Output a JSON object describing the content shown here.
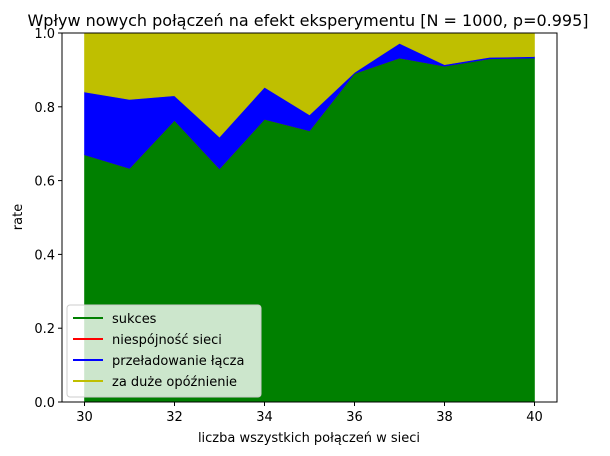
{
  "chart_data": {
    "type": "area",
    "title": "Wpływ nowych połączeń na efekt eksperymentu [N = 1000, p=0.995]",
    "xlabel": "liczba wszystkich połączeń w sieci",
    "ylabel": "rate",
    "xlim": [
      29.5,
      40.5
    ],
    "ylim": [
      0,
      1
    ],
    "x": [
      30,
      31,
      32,
      33,
      34,
      35,
      36,
      37,
      38,
      39,
      40
    ],
    "x_ticks": [
      30,
      32,
      34,
      36,
      38,
      40
    ],
    "y_ticks": [
      0.0,
      0.2,
      0.4,
      0.6,
      0.8,
      1.0
    ],
    "x_tick_labels": [
      "30",
      "32",
      "34",
      "36",
      "38",
      "40"
    ],
    "y_tick_labels": [
      "0.0",
      "0.2",
      "0.4",
      "0.6",
      "0.8",
      "1.0"
    ],
    "stacked": true,
    "legend_position": "lower-left",
    "grid": false,
    "series": [
      {
        "name": "sukces",
        "color": "#008000",
        "values": [
          0.67,
          0.633,
          0.763,
          0.632,
          0.766,
          0.735,
          0.89,
          0.932,
          0.91,
          0.93,
          0.932
        ]
      },
      {
        "name": "niespójność sieci",
        "color": "#ff0000",
        "values": [
          0,
          0,
          0,
          0,
          0,
          0,
          0,
          0,
          0,
          0,
          0
        ]
      },
      {
        "name": "przeładowanie łącza",
        "color": "#0000ff",
        "values": [
          0.17,
          0.187,
          0.067,
          0.086,
          0.087,
          0.043,
          0.003,
          0.04,
          0.004,
          0.004,
          0.004
        ]
      },
      {
        "name": "za duże opóźnienie",
        "color": "#bfbf00",
        "values": [
          0.16,
          0.18,
          0.17,
          0.282,
          0.147,
          0.222,
          0.107,
          0.028,
          0.086,
          0.066,
          0.064
        ]
      }
    ]
  }
}
